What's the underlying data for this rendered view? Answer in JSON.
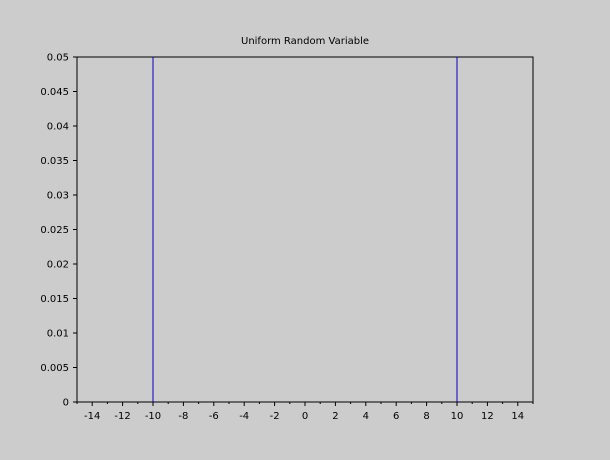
{
  "chart_data": {
    "type": "line",
    "title": "Uniform Random Variable",
    "xlabel": "",
    "ylabel": "",
    "xlim": [
      -15,
      15
    ],
    "ylim": [
      0,
      0.05
    ],
    "x_ticks": [
      -14,
      -12,
      -10,
      -8,
      -6,
      -4,
      -2,
      0,
      2,
      4,
      6,
      8,
      10,
      12,
      14
    ],
    "y_ticks": [
      "0",
      "0.005",
      "0.01",
      "0.015",
      "0.02",
      "0.025",
      "0.03",
      "0.035",
      "0.04",
      "0.045",
      "0.05"
    ],
    "grid": false,
    "series": [
      {
        "x": [
          -10,
          -10
        ],
        "y": [
          0,
          0.05
        ]
      },
      {
        "x": [
          10,
          10
        ],
        "y": [
          0,
          0.05
        ]
      }
    ],
    "colors": {
      "background": "#cccccc",
      "series": "#0000cc",
      "axis": "#000000"
    }
  }
}
